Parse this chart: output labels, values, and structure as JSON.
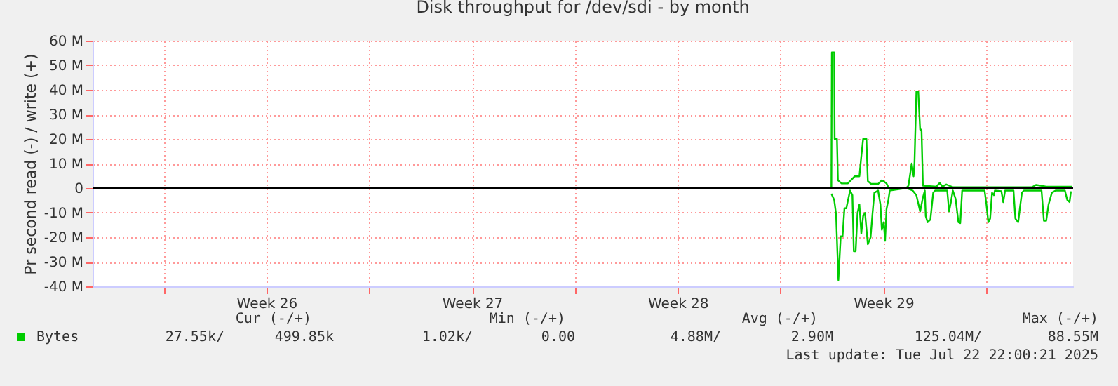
{
  "chart_data": {
    "type": "line",
    "title": "Disk throughput for /dev/sdi - by month",
    "ylabel": "Pr second read (-) / write (+)",
    "xlim": [
      "2025-06-19T14:00",
      "2025-07-22T23:00"
    ],
    "xticks": [
      {
        "value": "2025-06-22",
        "label": null
      },
      {
        "value": "2025-06-25T12:00",
        "label": "Week 26"
      },
      {
        "value": "2025-06-29",
        "label": null
      },
      {
        "value": "2025-07-02T12:00",
        "label": "Week 27"
      },
      {
        "value": "2025-07-06",
        "label": null
      },
      {
        "value": "2025-07-09T12:00",
        "label": "Week 28"
      },
      {
        "value": "2025-07-13",
        "label": null
      },
      {
        "value": "2025-07-16T12:00",
        "label": "Week 29"
      },
      {
        "value": "2025-07-20",
        "label": null
      }
    ],
    "ylim": [
      -40,
      60
    ],
    "yticks": [
      {
        "value": -40,
        "label": "-40 M"
      },
      {
        "value": -30,
        "label": "-30 M"
      },
      {
        "value": -20,
        "label": "-20 M"
      },
      {
        "value": -10,
        "label": "-10 M"
      },
      0,
      {
        "value": 10,
        "label": "10 M"
      },
      {
        "value": 20,
        "label": "20 M"
      },
      {
        "value": 30,
        "label": "30 M"
      },
      {
        "value": 40,
        "label": "40 M"
      },
      {
        "value": 50,
        "label": "50 M"
      },
      {
        "value": 60,
        "label": "60 M"
      }
    ],
    "grid": true,
    "legend": "bottom",
    "line_style": "solid",
    "marker": "none",
    "ref_lines": [
      {
        "axis": "y",
        "value": 0,
        "color": "#000000"
      }
    ],
    "series": [
      {
        "name": "Bytes",
        "color": "#00cc00",
        "x": [
          "2025-07-14T17:32",
          "2025-07-14T17:54",
          "2025-07-14T19:49",
          "2025-07-14T20:12",
          "2025-07-14T22:06",
          "2025-07-14T22:52",
          "2025-07-15T01:55",
          "2025-07-15T06:53",
          "2025-07-15T10:42",
          "2025-07-15T12:36",
          "2025-07-15T16:25",
          "2025-07-15T17:57",
          "2025-07-15T19:28",
          "2025-07-15T22:08",
          "2025-07-15T23:17",
          "2025-07-16T01:57",
          "2025-07-16T07:41",
          "2025-07-16T10:44",
          "2025-07-16T14:33",
          "2025-07-16T16:27",
          "2025-07-17T06:34",
          "2025-07-17T08:28",
          "2025-07-17T11:09",
          "2025-07-17T12:40",
          "2025-07-17T13:26",
          "2025-07-17T14:58",
          "2025-07-17T16:29",
          "2025-07-17T18:01",
          "2025-07-17T19:09",
          "2025-07-17T20:18",
          "2025-07-18T07:22",
          "2025-07-18T10:02",
          "2025-07-18T12:19",
          "2025-07-18T15:22",
          "2025-07-18T17:40",
          "2025-07-18T20:43",
          "2025-07-21T13:34",
          "2025-07-21T16:37",
          "2025-07-21T20:26",
          "2025-07-22T01:01",
          "2025-07-22T22:00"
        ],
        "values": [
          0,
          55.2,
          55.2,
          20.0,
          20.0,
          3.2,
          1.9,
          1.9,
          3.8,
          4.8,
          4.8,
          12.8,
          20.0,
          20.0,
          2.9,
          1.7,
          1.7,
          3.2,
          1.9,
          0,
          0,
          1.0,
          10.0,
          4.8,
          10.5,
          39.4,
          39.4,
          23.8,
          23.8,
          1.0,
          0.6,
          2.1,
          0.6,
          1.5,
          1.0,
          0.4,
          0.4,
          1.3,
          1.0,
          0.6,
          0.6
        ]
      },
      {
        "color": "#00cc00",
        "x": [
          "2025-07-14T17:32",
          "2025-07-14T19:49",
          "2025-07-14T21:20",
          "2025-07-14T23:15",
          "2025-07-15T01:09",
          "2025-07-15T02:41",
          "2025-07-15T04:12",
          "2025-07-15T05:44",
          "2025-07-15T08:47",
          "2025-07-15T10:42",
          "2025-07-15T11:50",
          "2025-07-15T13:22",
          "2025-07-15T14:53",
          "2025-07-15T16:25",
          "2025-07-15T17:57",
          "2025-07-15T19:28",
          "2025-07-15T21:00",
          "2025-07-15T23:17",
          "2025-07-16T01:34",
          "2025-07-16T03:06",
          "2025-07-16T04:38",
          "2025-07-16T07:41",
          "2025-07-16T09:35",
          "2025-07-16T10:44",
          "2025-07-16T12:15",
          "2025-07-16T13:24",
          "2025-07-16T14:33",
          "2025-07-16T16:04",
          "2025-07-16T17:13",
          "2025-07-17T06:34",
          "2025-07-17T11:55",
          "2025-07-17T14:58",
          "2025-07-17T18:01",
          "2025-07-17T20:18",
          "2025-07-17T21:50",
          "2025-07-17T22:35",
          "2025-07-18T00:07",
          "2025-07-18T02:24",
          "2025-07-18T04:42",
          "2025-07-18T06:13",
          "2025-07-18T16:08",
          "2025-07-18T17:40",
          "2025-07-18T19:11",
          "2025-07-18T20:43",
          "2025-07-18T23:00",
          "2025-07-19T01:18",
          "2025-07-19T02:49",
          "2025-07-19T04:21",
          "2025-07-19T22:40",
          "2025-07-20T00:11",
          "2025-07-20T01:43",
          "2025-07-20T03:14",
          "2025-07-20T04:46",
          "2025-07-20T06:17",
          "2025-07-20T07:03",
          "2025-07-20T12:24",
          "2025-07-20T13:55",
          "2025-07-20T15:27",
          "2025-07-20T22:19",
          "2025-07-20T23:50",
          "2025-07-21T02:08",
          "2025-07-21T03:39",
          "2025-07-21T05:11",
          "2025-07-21T06:42",
          "2025-07-21T21:12",
          "2025-07-21T23:07",
          "2025-07-22T01:01",
          "2025-07-22T02:55",
          "2025-07-22T05:36",
          "2025-07-22T08:39",
          "2025-07-22T16:17",
          "2025-07-22T18:11",
          "2025-07-22T20:06",
          "2025-07-22T21:14"
        ],
        "values": [
          -2.3,
          -4.8,
          -10.5,
          -37.5,
          -19.6,
          -19.6,
          -8.2,
          -8.2,
          -1.0,
          -2.9,
          -25.7,
          -25.7,
          -10.1,
          -6.7,
          -18.5,
          -11.4,
          -10.1,
          -22.9,
          -20.0,
          -10.5,
          -1.9,
          -1.0,
          -6.7,
          -17.0,
          -13.9,
          -21.5,
          -8.6,
          -4.8,
          -1.0,
          0,
          -1.0,
          -2.9,
          -9.5,
          -3.8,
          -1.0,
          -11.4,
          -13.9,
          -12.8,
          -1.9,
          -1.0,
          -1.0,
          -9.5,
          -5.7,
          -1.0,
          -4.4,
          -13.9,
          -14.3,
          -1.0,
          -1.0,
          -6.7,
          -13.9,
          -12.4,
          -1.9,
          -2.9,
          -1.0,
          -1.3,
          -5.7,
          -1.0,
          -1.0,
          -12.4,
          -13.9,
          -7.6,
          -1.9,
          -1.0,
          -1.0,
          -13.3,
          -13.3,
          -6.7,
          -1.9,
          -1.0,
          -1.0,
          -4.8,
          -5.7,
          -1.3
        ]
      }
    ],
    "annotations": [
      "Cur (-/+)",
      "Min (-/+)",
      "Avg (-/+)",
      "Max (-/+)",
      "27.55k/",
      "499.85k",
      "1.02k/",
      "0.00",
      "4.88M/",
      "2.90M",
      "125.04M/",
      "88.55M",
      "Last update: Tue Jul 22 22:00:21 2025"
    ]
  }
}
